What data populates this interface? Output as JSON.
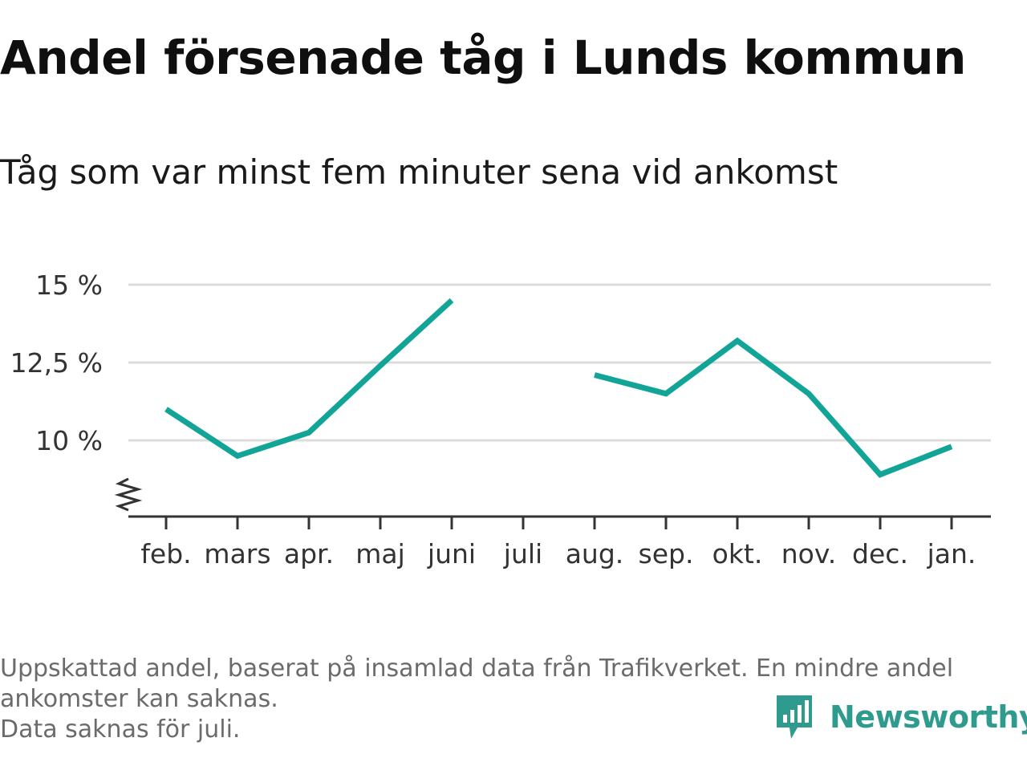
{
  "title": "Andel försenade tåg i Lunds kommun",
  "subtitle": "Tåg som var minst fem minuter sena vid ankomst",
  "footnotes": [
    "Uppskattad andel, baserat på insamlad data från Trafikverket. En mindre andel",
    "ankomster kan saknas.",
    "Data saknas för juli."
  ],
  "brand": {
    "name": "Newsworthy",
    "icon": "newsworthy-logo-icon",
    "color": "#2f9a8e"
  },
  "colors": {
    "line": "#12a597",
    "grid": "#dcdcdc",
    "axis": "#333333"
  },
  "chart_data": {
    "type": "line",
    "title": "Andel försenade tåg i Lunds kommun",
    "subtitle": "Tåg som var minst fem minuter sena vid ankomst",
    "xlabel": "",
    "ylabel": "",
    "categories": [
      "feb.",
      "mars",
      "apr.",
      "maj",
      "juni",
      "juli",
      "aug.",
      "sep.",
      "okt.",
      "nov.",
      "dec.",
      "jan."
    ],
    "series": [
      {
        "values": [
          11.0,
          9.5,
          10.25,
          12.4,
          14.5,
          null,
          12.1,
          11.5,
          13.2,
          11.5,
          8.9,
          9.8
        ]
      }
    ],
    "yticks": [
      10,
      12.5,
      15
    ],
    "ytick_labels": [
      "10 %",
      "12,5 %",
      "15 %"
    ],
    "ylim": [
      7.5,
      15
    ],
    "y_axis_break": true,
    "grid": true,
    "legend": "none"
  }
}
